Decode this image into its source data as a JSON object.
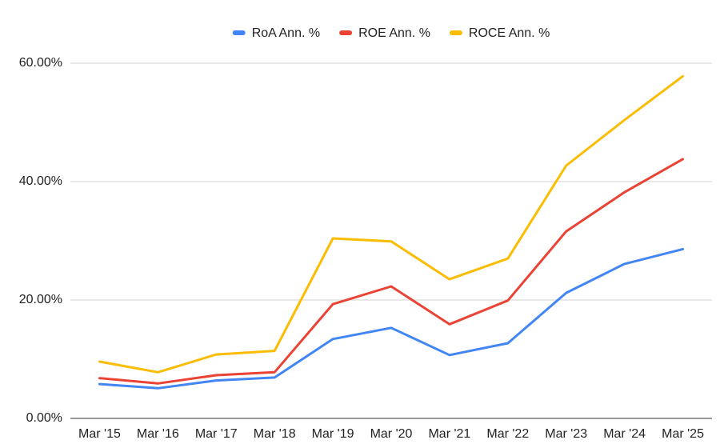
{
  "chart_data": {
    "type": "line",
    "categories": [
      "Mar '15",
      "Mar '16",
      "Mar '17",
      "Mar '18",
      "Mar '19",
      "Mar '20",
      "Mar '21",
      "Mar '22",
      "Mar '23",
      "Mar '24",
      "Mar '25"
    ],
    "series": [
      {
        "name": "RoA Ann. %",
        "color": "#4285f4",
        "values": [
          5.8,
          5.1,
          6.4,
          6.9,
          13.4,
          15.3,
          10.7,
          12.7,
          21.2,
          26.1,
          28.6
        ]
      },
      {
        "name": "ROE Ann. %",
        "color": "#ea4335",
        "values": [
          6.8,
          5.9,
          7.3,
          7.8,
          19.3,
          22.3,
          15.9,
          19.9,
          31.6,
          38.2,
          43.8
        ]
      },
      {
        "name": "ROCE Ann. %",
        "color": "#fbbc04",
        "values": [
          9.6,
          7.8,
          10.8,
          11.4,
          30.4,
          29.9,
          23.5,
          27.0,
          42.7,
          50.4,
          57.8
        ]
      }
    ],
    "ylim": [
      0,
      60
    ],
    "yticks": [
      {
        "value": 0,
        "label": "0.00%"
      },
      {
        "value": 20,
        "label": "20.00%"
      },
      {
        "value": 40,
        "label": "40.00%"
      },
      {
        "value": 60,
        "label": "60.00%"
      }
    ],
    "grid": true,
    "legend": "top"
  }
}
